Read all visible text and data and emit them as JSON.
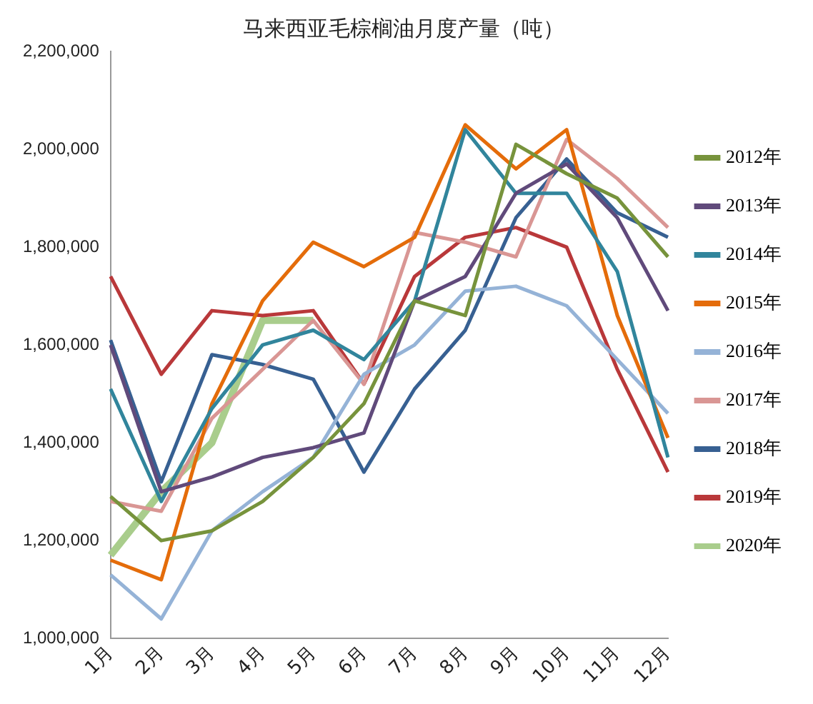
{
  "chart_data": {
    "type": "line",
    "title": "马来西亚毛棕榈油月度产量（吨）",
    "categories": [
      "1月",
      "2月",
      "3月",
      "4月",
      "5月",
      "6月",
      "7月",
      "8月",
      "9月",
      "10月",
      "11月",
      "12月"
    ],
    "series": [
      {
        "name": "2012年",
        "color": "#77933c",
        "values": [
          1290000,
          1200000,
          1220000,
          1280000,
          1370000,
          1480000,
          1690000,
          1660000,
          2010000,
          1950000,
          1900000,
          1780000
        ]
      },
      {
        "name": "2013年",
        "color": "#604a7b",
        "values": [
          1600000,
          1300000,
          1330000,
          1370000,
          1390000,
          1420000,
          1690000,
          1740000,
          1910000,
          1970000,
          1860000,
          1670000
        ]
      },
      {
        "name": "2014年",
        "color": "#31859c",
        "values": [
          1510000,
          1280000,
          1470000,
          1600000,
          1630000,
          1570000,
          1690000,
          2040000,
          1910000,
          1910000,
          1750000,
          1370000
        ]
      },
      {
        "name": "2015年",
        "color": "#e46c0a",
        "values": [
          1160000,
          1120000,
          1480000,
          1690000,
          1810000,
          1760000,
          1820000,
          2050000,
          1960000,
          2040000,
          1660000,
          1410000
        ]
      },
      {
        "name": "2016年",
        "color": "#95b3d7",
        "values": [
          1130000,
          1040000,
          1220000,
          1300000,
          1370000,
          1540000,
          1600000,
          1710000,
          1720000,
          1680000,
          1570000,
          1460000
        ]
      },
      {
        "name": "2017年",
        "color": "#d99694",
        "values": [
          1280000,
          1260000,
          1450000,
          1550000,
          1650000,
          1520000,
          1830000,
          1810000,
          1780000,
          2020000,
          1940000,
          1840000
        ]
      },
      {
        "name": "2018年",
        "color": "#376092",
        "values": [
          1610000,
          1320000,
          1580000,
          1560000,
          1530000,
          1340000,
          1510000,
          1630000,
          1860000,
          1980000,
          1870000,
          1820000
        ]
      },
      {
        "name": "2019年",
        "color": "#b9383a",
        "values": [
          1740000,
          1540000,
          1670000,
          1660000,
          1670000,
          1520000,
          1740000,
          1820000,
          1840000,
          1800000,
          1550000,
          1340000
        ]
      },
      {
        "name": "2020年",
        "color": "#a9cd8c",
        "values": [
          1170000,
          1300000,
          1400000,
          1650000,
          1650000,
          null,
          null,
          null,
          null,
          null,
          null,
          null
        ]
      }
    ],
    "ylim": [
      1000000,
      2200000
    ],
    "yticks": [
      {
        "value": 1000000,
        "label": "1,000,000"
      },
      {
        "value": 1200000,
        "label": "1,200,000"
      },
      {
        "value": 1400000,
        "label": "1,400,000"
      },
      {
        "value": 1600000,
        "label": "1,600,000"
      },
      {
        "value": 1800000,
        "label": "1,800,000"
      },
      {
        "value": 2000000,
        "label": "2,000,000"
      },
      {
        "value": 2200000,
        "label": "2,200,000"
      }
    ],
    "grid": false,
    "legend": "right",
    "marker": "none",
    "line_style": "solid"
  }
}
